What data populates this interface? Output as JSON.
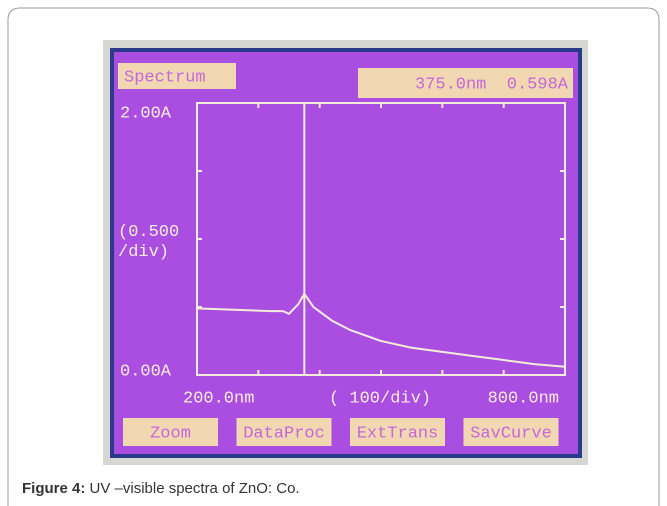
{
  "chart_data": {
    "type": "line",
    "title": "Spectrum",
    "readout": "375.0nm  0.598A",
    "cursor": {
      "x": 375,
      "y": 0.598
    },
    "y_label": "(0.500\n/div)",
    "x_label": "( 100/div)",
    "x": [
      200,
      260,
      320,
      340,
      350,
      365,
      375,
      390,
      420,
      450,
      500,
      550,
      600,
      650,
      700,
      750,
      800
    ],
    "series": [
      {
        "color": "#f4ecd8",
        "values": [
          0.49,
          0.48,
          0.47,
          0.47,
          0.45,
          0.52,
          0.598,
          0.5,
          0.4,
          0.33,
          0.25,
          0.2,
          0.17,
          0.14,
          0.11,
          0.08,
          0.06
        ]
      }
    ],
    "xlim": [
      200,
      800
    ],
    "ylim": [
      0,
      2
    ],
    "xticks": [
      {
        "value": 200,
        "label": "200.0nm"
      },
      {
        "value": 800,
        "label": "800.0nm"
      }
    ],
    "yticks": [
      {
        "value": 0,
        "label": "0.00A"
      },
      {
        "value": 2,
        "label": "2.00A"
      }
    ],
    "xminor": [
      300,
      400,
      500,
      600,
      700
    ],
    "yminor": [
      0.5,
      1,
      1.5
    ],
    "buttons": [
      "Zoom",
      "DataProc",
      "ExtTrans",
      "SavCurve"
    ]
  },
  "caption": {
    "label": "Figure 4:",
    "text": "UV –visible spectra of ZnO: Co."
  }
}
